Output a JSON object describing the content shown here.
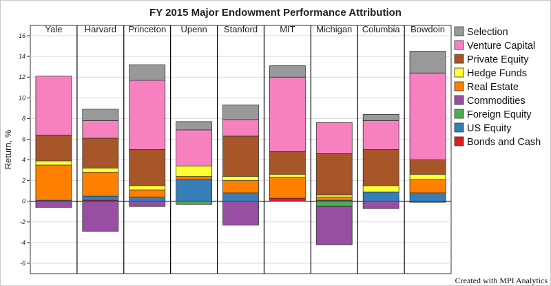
{
  "chart_data": {
    "type": "bar",
    "stacked": true,
    "title": "FY 2015 Major Endowment Performance Attribution",
    "ylabel": "Return, %",
    "xlabel": "",
    "ylim": [
      -7,
      17
    ],
    "yticks": [
      -6,
      -4,
      -2,
      0,
      2,
      4,
      6,
      8,
      10,
      12,
      14,
      16
    ],
    "grid": true,
    "legend_position": "right",
    "categories": [
      "Yale",
      "Harvard",
      "Princeton",
      "Upenn",
      "Stanford",
      "MIT",
      "Michigan",
      "Columbia",
      "Bowdoin"
    ],
    "series": [
      {
        "name": "Bonds and Cash",
        "color": "#e41a1c",
        "values": [
          0.0,
          0.1,
          0.0,
          0.0,
          0.0,
          0.3,
          0.0,
          0.0,
          0.0
        ]
      },
      {
        "name": "US Equity",
        "color": "#377eb8",
        "values": [
          0.1,
          0.4,
          0.4,
          2.1,
          0.8,
          0.0,
          0.1,
          0.9,
          0.8
        ]
      },
      {
        "name": "Foreign Equity",
        "color": "#4daf4a",
        "values": [
          0.0,
          0.0,
          0.0,
          -0.3,
          0.0,
          0.0,
          -0.5,
          0.0,
          0.0
        ]
      },
      {
        "name": "Commodities",
        "color": "#984ea3",
        "values": [
          -0.6,
          -2.9,
          -0.5,
          0.0,
          -2.3,
          0.0,
          -3.7,
          -0.7,
          -0.1
        ]
      },
      {
        "name": "Real Estate",
        "color": "#ff7f00",
        "values": [
          3.4,
          2.3,
          0.7,
          0.3,
          1.2,
          2.0,
          0.3,
          0.0,
          1.3
        ]
      },
      {
        "name": "Hedge Funds",
        "color": "#ffff33",
        "values": [
          0.4,
          0.4,
          0.4,
          1.0,
          0.4,
          0.3,
          0.2,
          0.6,
          0.5
        ]
      },
      {
        "name": "Private Equity",
        "color": "#a65628",
        "values": [
          2.5,
          2.9,
          3.5,
          0.0,
          3.9,
          2.2,
          4.0,
          3.5,
          1.4
        ]
      },
      {
        "name": "Venture Capital",
        "color": "#f781bf",
        "values": [
          5.7,
          1.7,
          6.7,
          3.5,
          1.6,
          7.2,
          3.0,
          2.8,
          8.4
        ]
      },
      {
        "name": "Selection",
        "color": "#999999",
        "values": [
          0.0,
          1.1,
          1.5,
          0.8,
          1.4,
          1.1,
          0.0,
          0.6,
          2.1
        ]
      }
    ]
  },
  "footer": {
    "credit": "Created with MPI Analytics"
  }
}
